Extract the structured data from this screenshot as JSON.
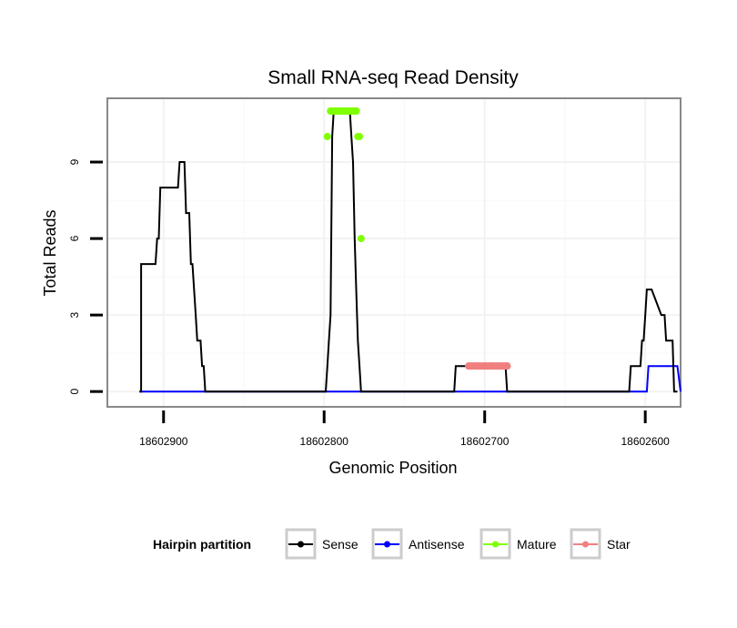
{
  "chart_data": {
    "type": "line",
    "title": "Small RNA-seq Read Density",
    "xlabel": "Genomic Position",
    "ylabel": "Total Reads",
    "xlim": [
      18602935,
      18602578
    ],
    "ylim": [
      -0.6,
      11.5
    ],
    "x_ticks": [
      18602900,
      18602800,
      18602700,
      18602600
    ],
    "x_tick_labels": [
      "18602900",
      "18602800",
      "18602700",
      "18602600"
    ],
    "y_ticks": [
      0,
      3,
      6,
      9
    ],
    "y_tick_labels": [
      "0",
      "3",
      "6",
      "9"
    ],
    "grid": true,
    "legend": {
      "title": "Hairpin partition",
      "position": "bottom",
      "entries": [
        "Sense",
        "Antisense",
        "Mature",
        "Star"
      ]
    },
    "colors": {
      "Sense": "#000000",
      "Antisense": "#0000ff",
      "Mature": "#7fff00",
      "Star": "#f08080"
    },
    "series": [
      {
        "name": "Sense",
        "x": [
          18602915,
          18602914,
          18602914,
          18602905,
          18602904,
          18602903,
          18602902,
          18602891,
          18602890,
          18602889,
          18602888,
          18602887,
          18602886,
          18602885,
          18602884,
          18602883,
          18602882,
          18602881,
          18602880,
          18602879,
          18602878,
          18602877,
          18602876,
          18602875,
          18602874,
          18602873,
          18602872,
          18602871,
          18602870,
          18602800,
          18602799,
          18602798,
          18602797,
          18602797,
          18602796,
          18602795,
          18602794,
          18602793,
          18602791,
          18602790,
          18602789,
          18602788,
          18602787,
          18602786,
          18602785,
          18602784,
          18602783,
          18602782,
          18602781,
          18602780,
          18602779,
          18602778,
          18602777,
          18602776,
          18602720,
          18602719,
          18602718,
          18602700,
          18602687,
          18602686,
          18602685,
          18602610,
          18602609,
          18602608,
          18602607,
          18602603,
          18602602,
          18602601,
          18602600,
          18602599,
          18602598,
          18602597,
          18602596,
          18602590,
          18602589,
          18602588,
          18602587,
          18602586,
          18602585,
          18602584,
          18602583,
          18602582,
          18602581,
          18602580
        ],
        "y": [
          0,
          0,
          5,
          5,
          6,
          6,
          8,
          8,
          9,
          9,
          9,
          9,
          7,
          7,
          7,
          5,
          5,
          4,
          3,
          2,
          2,
          2,
          1,
          1,
          0,
          0,
          0,
          0,
          0,
          0,
          0,
          1,
          2,
          2,
          3,
          10,
          11,
          11,
          11,
          11,
          11,
          11,
          11,
          11,
          11,
          11,
          10,
          9,
          6,
          4,
          2,
          1,
          0,
          0,
          0,
          0,
          1,
          1,
          1,
          0,
          0,
          0,
          1,
          1,
          1,
          1,
          2,
          2,
          3,
          4,
          4,
          4,
          4,
          3,
          3,
          3,
          2,
          2,
          2,
          2,
          2,
          0,
          0,
          0
        ]
      },
      {
        "name": "Antisense",
        "x": [
          18602915,
          18602600,
          18602599,
          18602598,
          18602590,
          18602581,
          18602580,
          18602578
        ],
        "y": [
          0,
          0,
          0,
          1,
          1,
          1,
          1,
          0
        ]
      },
      {
        "name": "Mature",
        "x": [
          18602798,
          18602796,
          18602795,
          18602790,
          18602785,
          18602780,
          18602779,
          18602778,
          18602777
        ],
        "y": [
          10,
          11,
          11,
          11,
          11,
          11,
          10,
          10,
          6
        ]
      },
      {
        "name": "Star",
        "x": [
          18602710,
          18602705,
          18602700,
          18602695,
          18602690,
          18602686
        ],
        "y": [
          1,
          1,
          1,
          1,
          1,
          1
        ]
      }
    ]
  }
}
